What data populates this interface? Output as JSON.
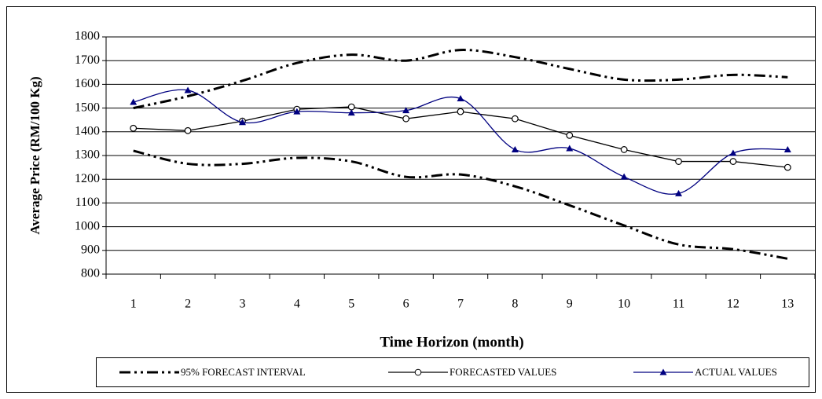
{
  "chart_data": {
    "type": "line",
    "xlabel": "Time Horizon (month)",
    "ylabel": "Average Price (RM/100 Kg)",
    "categories": [
      "1",
      "2",
      "3",
      "4",
      "5",
      "6",
      "7",
      "8",
      "9",
      "10",
      "11",
      "12",
      "13"
    ],
    "ylim": [
      800,
      1800
    ],
    "yticks": [
      800,
      900,
      1000,
      1100,
      1200,
      1300,
      1400,
      1500,
      1600,
      1700,
      1800
    ],
    "grid": true,
    "legend": "bottom",
    "series": [
      {
        "name": "95% FORECAST INTERVAL",
        "color": "#000000",
        "style": "dashdot",
        "smooth": true,
        "upper": [
          1500,
          1550,
          1615,
          1690,
          1725,
          1700,
          1745,
          1715,
          1665,
          1620,
          1620,
          1640,
          1630
        ],
        "lower": [
          1320,
          1265,
          1265,
          1290,
          1275,
          1210,
          1220,
          1170,
          1090,
          1005,
          925,
          905,
          865
        ]
      },
      {
        "name": "FORECASTED VALUES",
        "color": "#000000",
        "marker": "circle",
        "smooth": false,
        "values": [
          1415,
          1405,
          1445,
          1495,
          1505,
          1455,
          1485,
          1455,
          1385,
          1325,
          1275,
          1275,
          1250
        ]
      },
      {
        "name": "ACTUAL VALUES",
        "color": "#000080",
        "marker": "triangle",
        "smooth": true,
        "values": [
          1525,
          1575,
          1440,
          1485,
          1480,
          1490,
          1540,
          1325,
          1330,
          1210,
          1140,
          1310,
          1325
        ]
      }
    ]
  }
}
